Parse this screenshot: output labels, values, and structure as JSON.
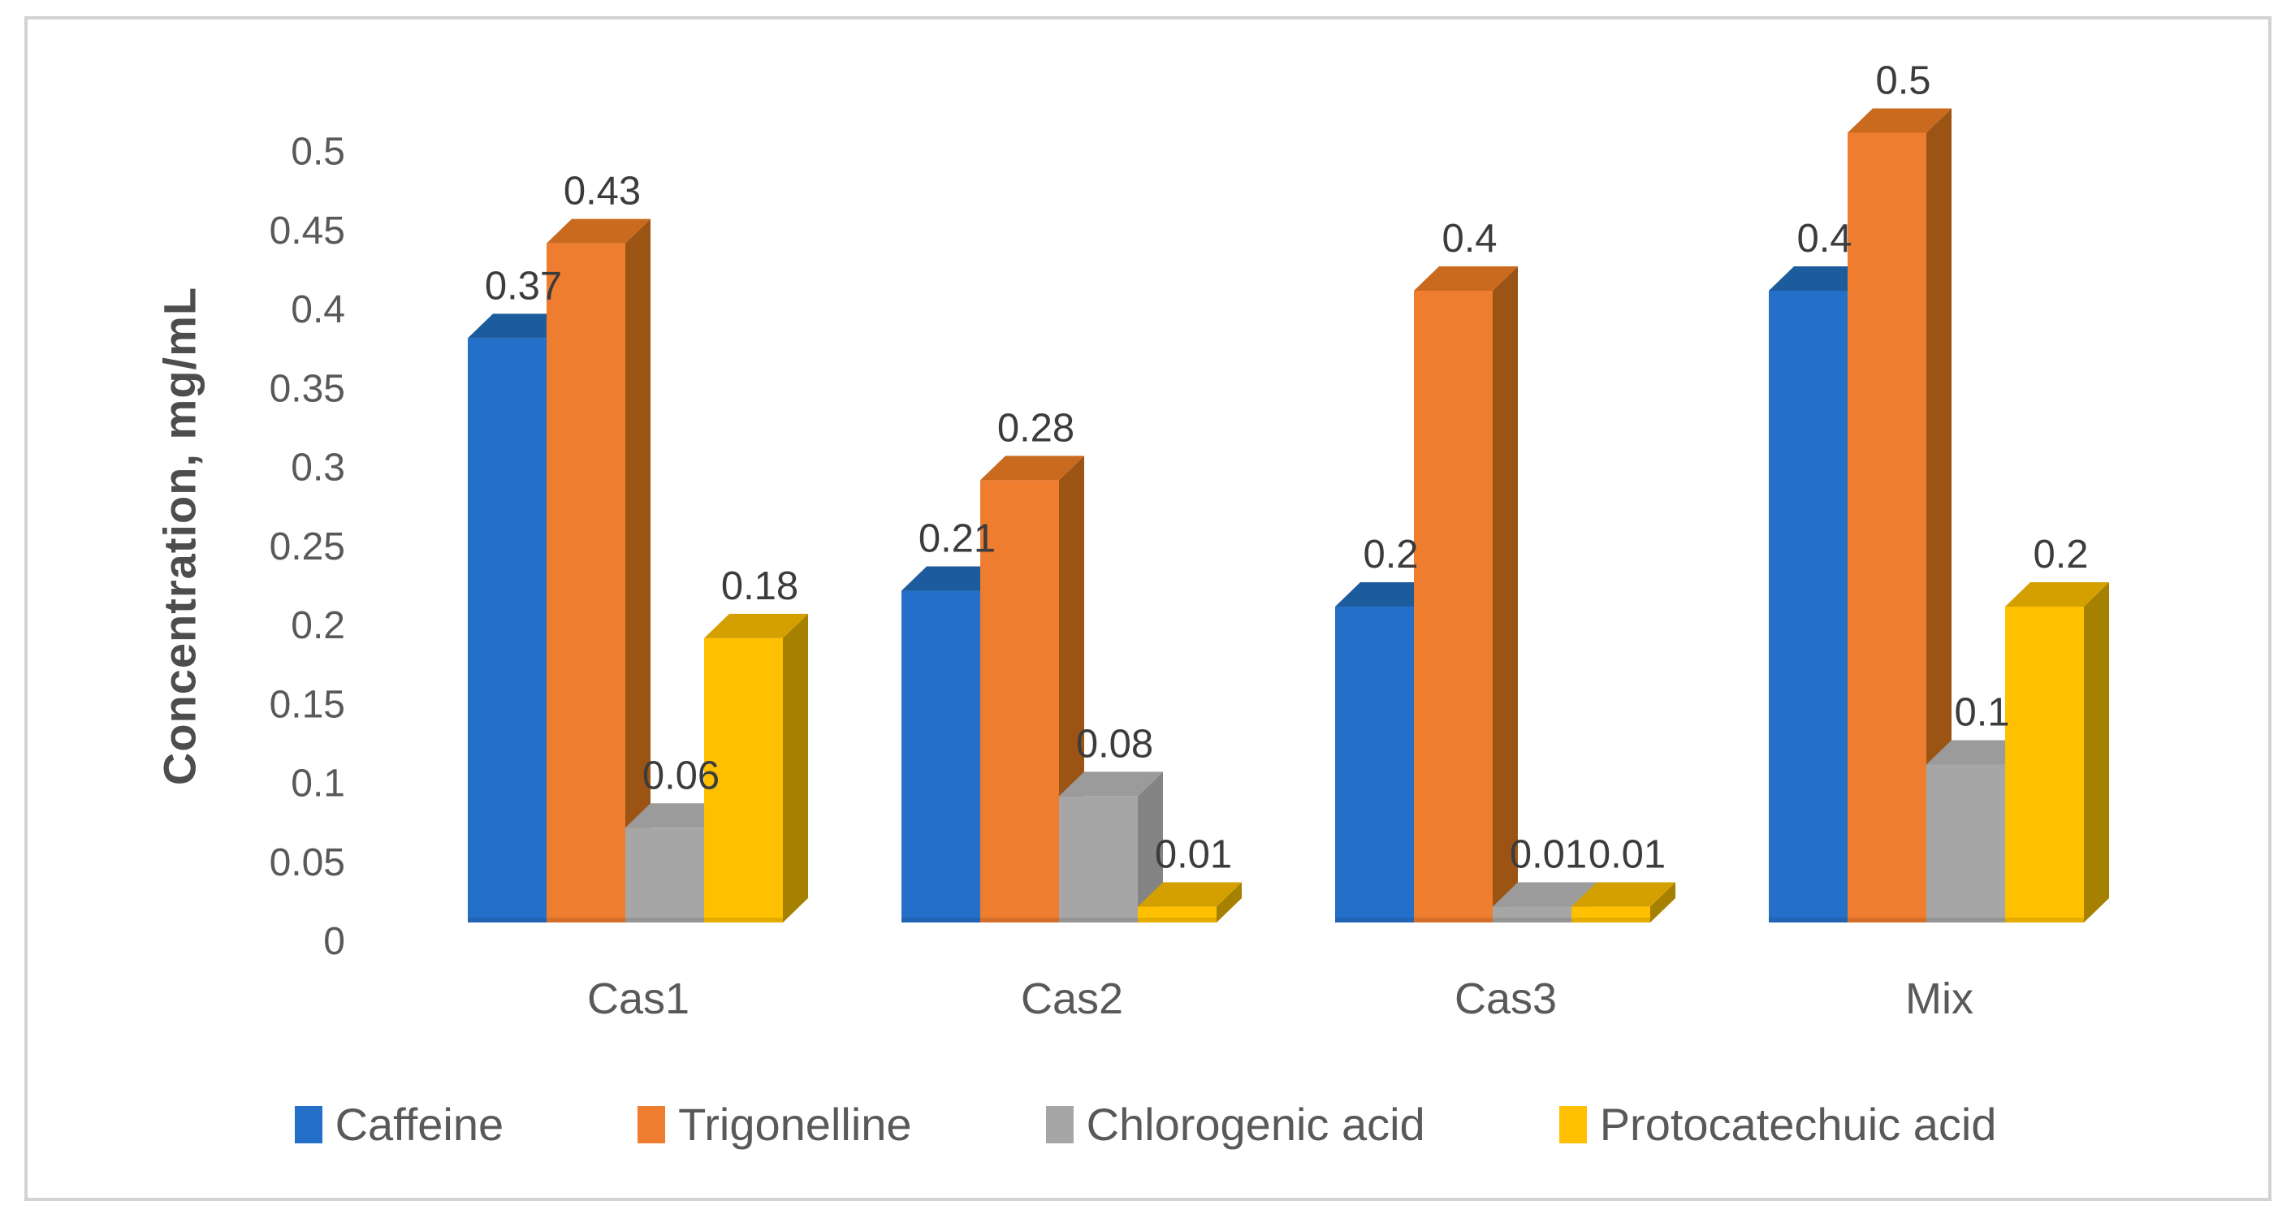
{
  "figure": {
    "background": "#ffffff",
    "border_color": "#d2d2d2"
  },
  "chart_data": {
    "type": "bar",
    "style": "3d-clustered-column",
    "title": "",
    "y_axis_title": "Concentration, mg/mL",
    "xlabel": "",
    "ylabel": "Concentration, mg/mL",
    "categories": [
      "Cas1",
      "Cas2",
      "Cas3",
      "Mix"
    ],
    "series": [
      {
        "name": "Caffeine",
        "color": "#2470C8",
        "color_top": "#1d5c9c",
        "color_side": "#174b80",
        "values": [
          0.37,
          0.21,
          0.2,
          0.4
        ],
        "labels": [
          "0.37",
          "0.21",
          "0.2",
          "0.4"
        ]
      },
      {
        "name": "Trigonelline",
        "color": "#EE7D2F",
        "color_top": "#c96a1e",
        "color_side": "#9c5415",
        "values": [
          0.43,
          0.28,
          0.4,
          0.5
        ],
        "labels": [
          "0.43",
          "0.28",
          "0.4",
          "0.5"
        ]
      },
      {
        "name": "Chlorogenic acid",
        "color": "#A6A6A6",
        "color_top": "#9b9b9b",
        "color_side": "#848484",
        "values": [
          0.06,
          0.08,
          0.01,
          0.1
        ],
        "labels": [
          "0.06",
          "0.08",
          "0.01",
          "0.1"
        ]
      },
      {
        "name": "Protocatechuic acid",
        "color": "#FFC001",
        "color_top": "#d4a000",
        "color_side": "#a68000",
        "values": [
          0.18,
          0.01,
          0.01,
          0.2
        ],
        "labels": [
          "0.18",
          "0.01",
          "0.01",
          "0.2"
        ]
      }
    ],
    "y_ticks": [
      "0",
      "0.05",
      "0.1",
      "0.15",
      "0.2",
      "0.25",
      "0.3",
      "0.35",
      "0.4",
      "0.45",
      "0.5"
    ],
    "y_tick_values": [
      0,
      0.05,
      0.1,
      0.15,
      0.2,
      0.25,
      0.3,
      0.35,
      0.4,
      0.45,
      0.5
    ],
    "ylim": [
      0,
      0.5
    ],
    "grid": false,
    "legend_position": "bottom",
    "tick_color": "#595959",
    "category_color": "#595959",
    "value_label_color": "#3c3c3c",
    "legend_text_color": "#595959"
  }
}
